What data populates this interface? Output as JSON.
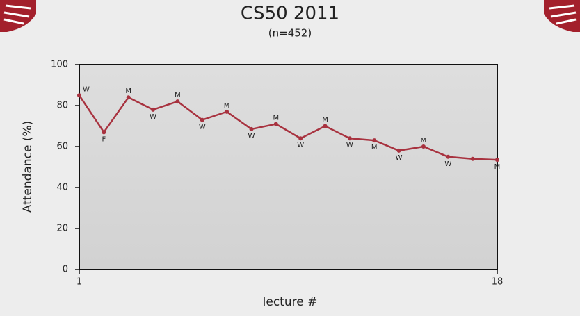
{
  "chart_data": {
    "type": "line",
    "title": "CS50 2011",
    "subtitle": "(n=452)",
    "x_label": "lecture #",
    "y_label": "Attendance (%)",
    "x": [
      1,
      2,
      3,
      4,
      5,
      6,
      7,
      8,
      9,
      10,
      11,
      12,
      13,
      14,
      15,
      16,
      17,
      18
    ],
    "series": [
      {
        "name": "Attendance",
        "color": "#a8323f",
        "values": [
          85,
          67,
          84,
          78,
          82,
          73,
          77,
          68.5,
          71,
          64,
          70,
          64,
          63,
          58,
          60,
          55,
          54,
          53.5
        ]
      }
    ],
    "day_labels": [
      "W",
      "F",
      "M",
      "W",
      "M",
      "W",
      "M",
      "W",
      "M",
      "W",
      "M",
      "W",
      "M",
      "W",
      "M",
      "W",
      null,
      "M"
    ],
    "xlim": [
      1,
      18
    ],
    "xticks": [
      1,
      18
    ],
    "ylim": [
      0,
      100
    ],
    "yticks": [
      0,
      20,
      40,
      60,
      80,
      100
    ]
  }
}
